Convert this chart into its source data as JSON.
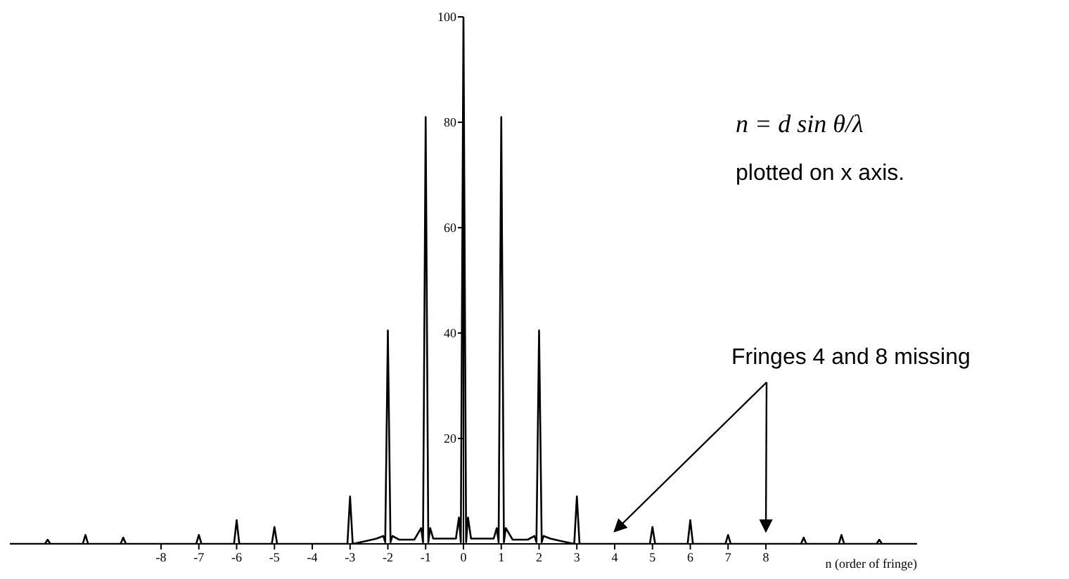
{
  "chart_data": {
    "type": "line",
    "xlabel": "n (order of fringe)",
    "annotations": [
      "n = d sin θ/λ",
      "plotted on x axis.",
      {
        "text": "Fringes 4 and 8 missing",
        "x": 4,
        "y": 0
      }
    ],
    "xlim": [
      -12,
      12
    ],
    "xticks": [
      -8,
      -7,
      -6,
      -5,
      -4,
      -3,
      -2,
      -1,
      0,
      1,
      2,
      3,
      4,
      5,
      6,
      7,
      8
    ],
    "ylim": [
      0,
      100
    ],
    "yticks": [
      20,
      40,
      60,
      80,
      100
    ],
    "marker": "none",
    "line_style": "solid",
    "x": [
      -12,
      -11.07,
      -11,
      -10.93,
      -10.07,
      -10,
      -9.93,
      -9.07,
      -9,
      -8.93,
      -7.07,
      -7,
      -6.93,
      -6.07,
      -6,
      -5.93,
      -5.07,
      -5,
      -4.93,
      -3.07,
      -3,
      -2.93,
      -2.6,
      -2.3,
      -2.12,
      -2.07,
      -2,
      -1.93,
      -1.88,
      -1.7,
      -1.5,
      -1.3,
      -1.12,
      -1.07,
      -1,
      -0.93,
      -0.88,
      -0.8,
      -0.6,
      -0.4,
      -0.2,
      -0.12,
      -0.07,
      0,
      0.07,
      0.12,
      0.2,
      0.4,
      0.6,
      0.8,
      0.88,
      0.93,
      1,
      1.07,
      1.12,
      1.3,
      1.5,
      1.7,
      1.88,
      1.93,
      2,
      2.07,
      2.12,
      2.3,
      2.6,
      2.93,
      3,
      3.07,
      4.93,
      5,
      5.07,
      5.93,
      6,
      6.07,
      6.93,
      7,
      7.07,
      8.93,
      9,
      9.07,
      9.93,
      10,
      10.07,
      10.93,
      11,
      11.07,
      12
    ],
    "series": [
      {
        "color": "#000000",
        "values": [
          0,
          0,
          0.8,
          0,
          0,
          1.7,
          0,
          0,
          1.2,
          0,
          0,
          1.7,
          0,
          0,
          4.5,
          0,
          0,
          3.2,
          0,
          0,
          9,
          0,
          0.5,
          1,
          1.5,
          0.3,
          40.5,
          0.3,
          1.5,
          0.8,
          0.8,
          0.8,
          3,
          0.3,
          81,
          0.3,
          3,
          1,
          1,
          1,
          1,
          5,
          0.3,
          100,
          0.3,
          5,
          1,
          1,
          1,
          1,
          3,
          0.3,
          81,
          0.3,
          3,
          0.8,
          0.8,
          0.8,
          1.5,
          0.3,
          40.5,
          0.3,
          1.5,
          1,
          0.5,
          0,
          9,
          0,
          0,
          3.2,
          0,
          0,
          4.5,
          0,
          0,
          1.7,
          0,
          0,
          1.2,
          0,
          0,
          1.7,
          0,
          0,
          0.8,
          0,
          0
        ]
      }
    ]
  }
}
